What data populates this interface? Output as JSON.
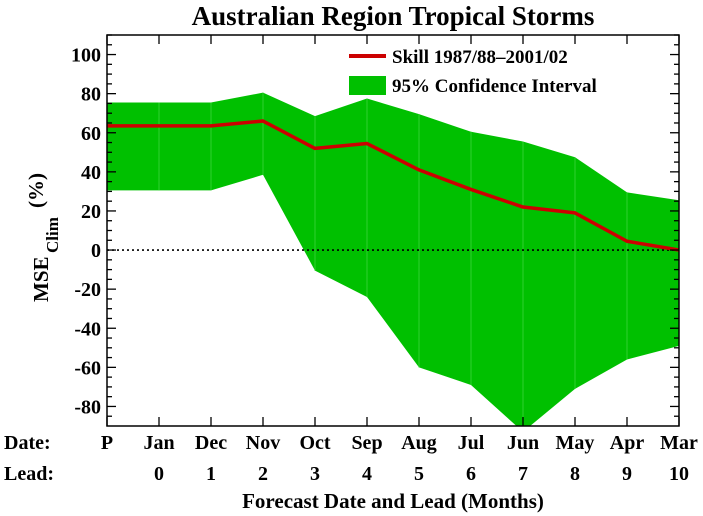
{
  "chart_data": {
    "type": "area",
    "title": "Australian Region Tropical Storms",
    "xlabel": "Forecast Date and Lead (Months)",
    "ylabel_main": "MSE",
    "ylabel_sub": "Clim",
    "ylabel_unit": "(%)",
    "ylim": [
      -90,
      110
    ],
    "yticks": [
      -80,
      -60,
      -40,
      -20,
      0,
      20,
      40,
      60,
      80,
      100
    ],
    "row_label_date": "Date:",
    "row_label_lead": "Lead:",
    "dates": [
      "P",
      "Jan",
      "Dec",
      "Nov",
      "Oct",
      "Sep",
      "Aug",
      "Jul",
      "Jun",
      "May",
      "Apr",
      "Mar"
    ],
    "leads": [
      "",
      "0",
      "1",
      "2",
      "3",
      "4",
      "5",
      "6",
      "7",
      "8",
      "9",
      "10"
    ],
    "x": [
      -1,
      0,
      1,
      2,
      3,
      4,
      5,
      6,
      7,
      8,
      9,
      10
    ],
    "series": [
      {
        "name": "Skill 1987/88–2001/02",
        "color": "#cc0000",
        "x": [
          -1,
          0,
          1,
          2,
          3,
          4,
          5,
          6,
          7,
          8,
          9,
          10
        ],
        "values": [
          63.5,
          63.5,
          63.5,
          66,
          52,
          54.5,
          41,
          31,
          22,
          19,
          4.5,
          0
        ]
      }
    ],
    "confidence_interval": {
      "name": "95% Confidence Interval",
      "color": "#00c000",
      "x": [
        -1,
        0,
        1,
        2,
        3,
        4,
        5,
        6,
        7,
        8,
        9,
        10
      ],
      "upper": [
        75.5,
        75.5,
        75.5,
        80.5,
        68.5,
        77.5,
        69.5,
        60.5,
        55.5,
        47.5,
        29.5,
        25.5
      ],
      "lower": [
        30.5,
        30.5,
        30.5,
        38.5,
        -10.5,
        -24,
        -60,
        -69,
        -93,
        -71,
        -56,
        -49
      ]
    },
    "zero_line": "dotted",
    "legend_position": "top-right"
  }
}
